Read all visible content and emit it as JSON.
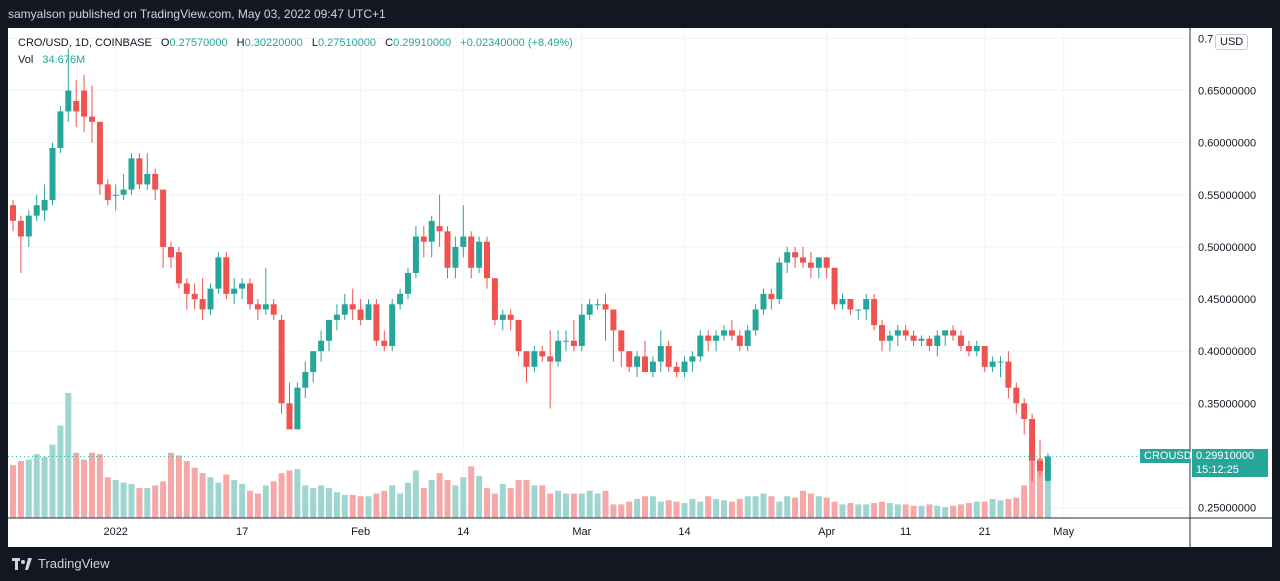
{
  "header": {
    "publisher_line": "samyalson published on TradingView.com, May 03, 2022 09:47 UTC+1"
  },
  "legend": {
    "symbol": "CRO/USD, 1D, COINBASE",
    "o_label": "O",
    "o_value": "0.27570000",
    "h_label": "H",
    "h_value": "0.30220000",
    "l_label": "L",
    "l_value": "0.27510000",
    "c_label": "C",
    "c_value": "0.29910000",
    "change": "+0.02340000 (+8.49%)",
    "vol_label": "Vol",
    "vol_value": "34.676M"
  },
  "currency_badge": "USD",
  "price_tags": {
    "symbol": "CROUSD",
    "last_price": "0.29910000",
    "countdown": "15:12:25"
  },
  "footer": {
    "brand": "TradingView"
  },
  "colors": {
    "up": "#26a69a",
    "down": "#ef5350",
    "vol_up": "#9ed5ce",
    "vol_down": "#f4a9a8",
    "grid": "#f0f3fa",
    "last_price": "#26a69a"
  },
  "chart_data": {
    "type": "candlestick",
    "title": "CRO/USD, 1D, COINBASE",
    "ylim": [
      0.24,
      0.71
    ],
    "y_ticks": [
      "0.7",
      "0.65000000",
      "0.60000000",
      "0.55000000",
      "0.50000000",
      "0.45000000",
      "0.40000000",
      "0.35000000",
      "0.25000000"
    ],
    "y_tick_values": [
      0.7,
      0.65,
      0.6,
      0.55,
      0.5,
      0.45,
      0.4,
      0.35,
      0.25
    ],
    "x_ticks": [
      {
        "label": "2022",
        "index": 13
      },
      {
        "label": "17",
        "index": 29
      },
      {
        "label": "Feb",
        "index": 44
      },
      {
        "label": "14",
        "index": 57
      },
      {
        "label": "Mar",
        "index": 72
      },
      {
        "label": "14",
        "index": 85
      },
      {
        "label": "Apr",
        "index": 103
      },
      {
        "label": "11",
        "index": 113
      },
      {
        "label": "21",
        "index": 123
      },
      {
        "label": "May",
        "index": 133
      }
    ],
    "last_close": 0.2991,
    "ohlcv": [
      [
        0.54,
        0.545,
        0.515,
        0.525,
        39
      ],
      [
        0.525,
        0.53,
        0.475,
        0.51,
        42
      ],
      [
        0.51,
        0.535,
        0.5,
        0.53,
        43
      ],
      [
        0.53,
        0.55,
        0.525,
        0.54,
        47
      ],
      [
        0.535,
        0.56,
        0.525,
        0.545,
        45
      ],
      [
        0.545,
        0.6,
        0.54,
        0.595,
        54
      ],
      [
        0.595,
        0.635,
        0.59,
        0.63,
        68
      ],
      [
        0.63,
        0.69,
        0.62,
        0.65,
        92
      ],
      [
        0.64,
        0.66,
        0.615,
        0.63,
        48
      ],
      [
        0.65,
        0.665,
        0.61,
        0.625,
        43
      ],
      [
        0.625,
        0.655,
        0.6,
        0.62,
        48
      ],
      [
        0.62,
        0.62,
        0.55,
        0.56,
        47
      ],
      [
        0.56,
        0.565,
        0.54,
        0.545,
        30
      ],
      [
        0.55,
        0.56,
        0.535,
        0.55,
        28
      ],
      [
        0.55,
        0.57,
        0.545,
        0.555,
        26
      ],
      [
        0.555,
        0.59,
        0.55,
        0.585,
        25
      ],
      [
        0.585,
        0.59,
        0.555,
        0.56,
        22
      ],
      [
        0.56,
        0.59,
        0.555,
        0.57,
        22
      ],
      [
        0.57,
        0.575,
        0.545,
        0.555,
        24
      ],
      [
        0.555,
        0.555,
        0.48,
        0.5,
        27
      ],
      [
        0.5,
        0.505,
        0.48,
        0.49,
        48
      ],
      [
        0.495,
        0.5,
        0.46,
        0.465,
        46
      ],
      [
        0.465,
        0.47,
        0.44,
        0.455,
        42
      ],
      [
        0.455,
        0.465,
        0.44,
        0.45,
        37
      ],
      [
        0.45,
        0.47,
        0.43,
        0.44,
        33
      ],
      [
        0.44,
        0.465,
        0.435,
        0.46,
        30
      ],
      [
        0.46,
        0.495,
        0.455,
        0.49,
        26
      ],
      [
        0.49,
        0.495,
        0.45,
        0.455,
        32
      ],
      [
        0.455,
        0.47,
        0.445,
        0.46,
        28
      ],
      [
        0.46,
        0.47,
        0.45,
        0.465,
        25
      ],
      [
        0.465,
        0.47,
        0.44,
        0.445,
        20
      ],
      [
        0.445,
        0.45,
        0.43,
        0.44,
        18
      ],
      [
        0.44,
        0.48,
        0.435,
        0.445,
        24
      ],
      [
        0.445,
        0.45,
        0.43,
        0.435,
        27
      ],
      [
        0.43,
        0.435,
        0.34,
        0.35,
        33
      ],
      [
        0.35,
        0.37,
        0.325,
        0.325,
        35
      ],
      [
        0.325,
        0.37,
        0.33,
        0.365,
        36
      ],
      [
        0.365,
        0.39,
        0.355,
        0.38,
        24
      ],
      [
        0.38,
        0.4,
        0.37,
        0.4,
        22
      ],
      [
        0.4,
        0.42,
        0.39,
        0.41,
        24
      ],
      [
        0.41,
        0.43,
        0.4,
        0.43,
        22
      ],
      [
        0.43,
        0.445,
        0.42,
        0.435,
        19
      ],
      [
        0.435,
        0.455,
        0.43,
        0.445,
        17
      ],
      [
        0.445,
        0.46,
        0.43,
        0.44,
        17
      ],
      [
        0.44,
        0.45,
        0.425,
        0.43,
        16
      ],
      [
        0.43,
        0.45,
        0.43,
        0.445,
        16
      ],
      [
        0.445,
        0.45,
        0.405,
        0.41,
        18
      ],
      [
        0.41,
        0.42,
        0.4,
        0.405,
        20
      ],
      [
        0.405,
        0.45,
        0.4,
        0.445,
        24
      ],
      [
        0.445,
        0.46,
        0.44,
        0.455,
        18
      ],
      [
        0.455,
        0.48,
        0.45,
        0.475,
        26
      ],
      [
        0.475,
        0.52,
        0.47,
        0.51,
        35
      ],
      [
        0.51,
        0.52,
        0.49,
        0.505,
        22
      ],
      [
        0.505,
        0.53,
        0.49,
        0.525,
        28
      ],
      [
        0.52,
        0.55,
        0.5,
        0.515,
        33
      ],
      [
        0.515,
        0.52,
        0.47,
        0.48,
        28
      ],
      [
        0.48,
        0.51,
        0.47,
        0.5,
        24
      ],
      [
        0.5,
        0.54,
        0.49,
        0.51,
        30
      ],
      [
        0.51,
        0.515,
        0.47,
        0.48,
        38
      ],
      [
        0.48,
        0.51,
        0.475,
        0.505,
        31
      ],
      [
        0.505,
        0.51,
        0.46,
        0.47,
        22
      ],
      [
        0.47,
        0.47,
        0.425,
        0.43,
        18
      ],
      [
        0.43,
        0.44,
        0.42,
        0.435,
        25
      ],
      [
        0.435,
        0.44,
        0.42,
        0.43,
        22
      ],
      [
        0.43,
        0.43,
        0.395,
        0.4,
        28
      ],
      [
        0.4,
        0.4,
        0.37,
        0.385,
        28
      ],
      [
        0.385,
        0.405,
        0.38,
        0.4,
        24
      ],
      [
        0.4,
        0.405,
        0.39,
        0.395,
        24
      ],
      [
        0.395,
        0.42,
        0.345,
        0.39,
        18
      ],
      [
        0.39,
        0.42,
        0.385,
        0.41,
        20
      ],
      [
        0.41,
        0.42,
        0.4,
        0.41,
        18
      ],
      [
        0.41,
        0.43,
        0.4,
        0.405,
        18
      ],
      [
        0.405,
        0.445,
        0.4,
        0.435,
        18
      ],
      [
        0.435,
        0.45,
        0.43,
        0.445,
        20
      ],
      [
        0.445,
        0.45,
        0.44,
        0.445,
        18
      ],
      [
        0.445,
        0.455,
        0.41,
        0.44,
        20
      ],
      [
        0.44,
        0.44,
        0.39,
        0.42,
        10
      ],
      [
        0.42,
        0.42,
        0.385,
        0.4,
        10
      ],
      [
        0.4,
        0.4,
        0.38,
        0.385,
        12
      ],
      [
        0.385,
        0.4,
        0.375,
        0.395,
        14
      ],
      [
        0.395,
        0.41,
        0.38,
        0.38,
        16
      ],
      [
        0.38,
        0.395,
        0.375,
        0.39,
        16
      ],
      [
        0.39,
        0.42,
        0.38,
        0.405,
        12
      ],
      [
        0.405,
        0.41,
        0.38,
        0.385,
        13
      ],
      [
        0.385,
        0.39,
        0.375,
        0.38,
        12
      ],
      [
        0.38,
        0.395,
        0.375,
        0.39,
        11
      ],
      [
        0.39,
        0.4,
        0.38,
        0.395,
        14
      ],
      [
        0.395,
        0.42,
        0.39,
        0.415,
        12
      ],
      [
        0.415,
        0.42,
        0.4,
        0.41,
        16
      ],
      [
        0.41,
        0.42,
        0.4,
        0.415,
        14
      ],
      [
        0.415,
        0.425,
        0.41,
        0.42,
        13
      ],
      [
        0.42,
        0.43,
        0.41,
        0.415,
        12
      ],
      [
        0.415,
        0.42,
        0.4,
        0.405,
        14
      ],
      [
        0.405,
        0.425,
        0.4,
        0.42,
        16
      ],
      [
        0.42,
        0.445,
        0.415,
        0.44,
        16
      ],
      [
        0.44,
        0.46,
        0.435,
        0.455,
        18
      ],
      [
        0.455,
        0.46,
        0.44,
        0.45,
        16
      ],
      [
        0.45,
        0.49,
        0.445,
        0.485,
        12
      ],
      [
        0.485,
        0.5,
        0.475,
        0.495,
        16
      ],
      [
        0.495,
        0.5,
        0.48,
        0.49,
        15
      ],
      [
        0.49,
        0.5,
        0.48,
        0.485,
        20
      ],
      [
        0.485,
        0.495,
        0.47,
        0.48,
        18
      ],
      [
        0.48,
        0.49,
        0.47,
        0.49,
        16
      ],
      [
        0.49,
        0.49,
        0.47,
        0.48,
        15
      ],
      [
        0.48,
        0.48,
        0.44,
        0.445,
        12
      ],
      [
        0.445,
        0.455,
        0.44,
        0.45,
        10
      ],
      [
        0.45,
        0.45,
        0.435,
        0.44,
        11
      ],
      [
        0.44,
        0.44,
        0.43,
        0.44,
        10
      ],
      [
        0.44,
        0.455,
        0.43,
        0.45,
        10
      ],
      [
        0.45,
        0.455,
        0.42,
        0.425,
        11
      ],
      [
        0.425,
        0.43,
        0.4,
        0.41,
        12
      ],
      [
        0.41,
        0.42,
        0.4,
        0.415,
        11
      ],
      [
        0.415,
        0.425,
        0.405,
        0.42,
        10
      ],
      [
        0.42,
        0.425,
        0.41,
        0.415,
        10
      ],
      [
        0.415,
        0.42,
        0.405,
        0.41,
        9
      ],
      [
        0.41,
        0.415,
        0.405,
        0.412,
        9
      ],
      [
        0.412,
        0.415,
        0.4,
        0.405,
        10
      ],
      [
        0.405,
        0.42,
        0.395,
        0.415,
        9
      ],
      [
        0.415,
        0.42,
        0.405,
        0.42,
        8
      ],
      [
        0.42,
        0.425,
        0.41,
        0.415,
        9
      ],
      [
        0.415,
        0.42,
        0.4,
        0.405,
        10
      ],
      [
        0.405,
        0.41,
        0.395,
        0.4,
        11
      ],
      [
        0.4,
        0.41,
        0.395,
        0.405,
        12
      ],
      [
        0.405,
        0.405,
        0.38,
        0.385,
        12
      ],
      [
        0.385,
        0.395,
        0.38,
        0.39,
        14
      ],
      [
        0.39,
        0.395,
        0.375,
        0.39,
        13
      ],
      [
        0.39,
        0.4,
        0.355,
        0.365,
        14
      ],
      [
        0.365,
        0.37,
        0.34,
        0.35,
        15
      ],
      [
        0.35,
        0.355,
        0.32,
        0.335,
        24
      ],
      [
        0.335,
        0.34,
        0.275,
        0.295,
        56
      ],
      [
        0.295,
        0.315,
        0.28,
        0.285,
        44
      ],
      [
        0.2757,
        0.3022,
        0.2751,
        0.2991,
        29
      ]
    ]
  }
}
